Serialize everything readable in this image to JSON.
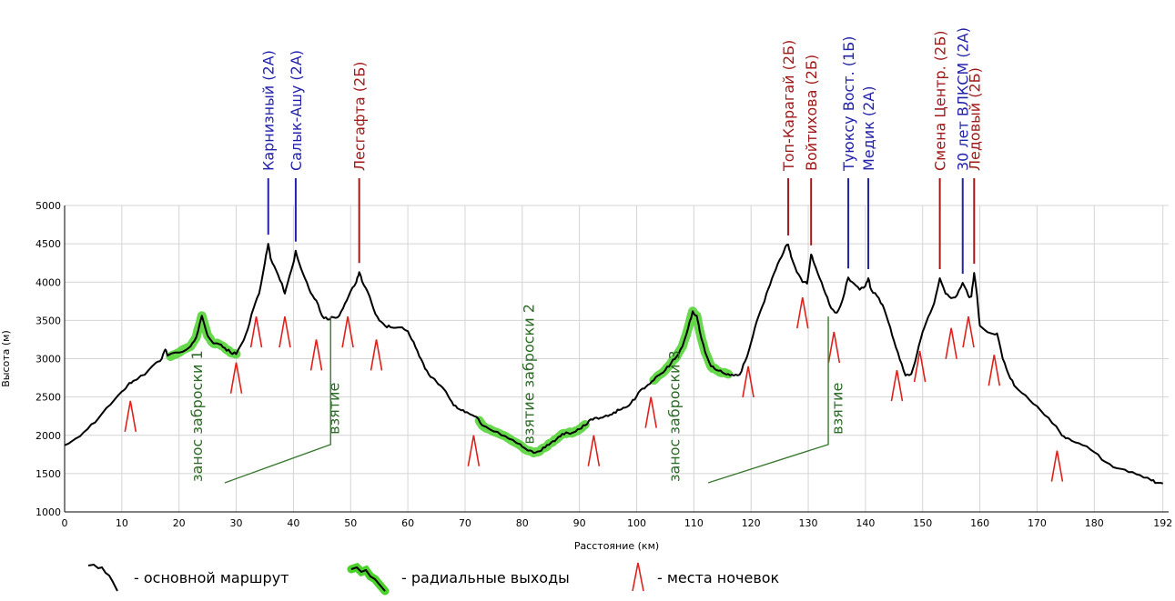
{
  "chart_data": {
    "type": "line",
    "xlabel": "Расстояние  (км)",
    "ylabel": "Высота (м)",
    "xlim": [
      0,
      193
    ],
    "ylim": [
      1000,
      5000
    ],
    "x_ticks": [
      0,
      10,
      20,
      30,
      40,
      50,
      60,
      70,
      80,
      90,
      100,
      110,
      120,
      130,
      140,
      150,
      160,
      170,
      180,
      192
    ],
    "y_ticks": [
      1000,
      1500,
      2000,
      2500,
      3000,
      3500,
      4000,
      4500,
      5000
    ],
    "grid": true,
    "series": [
      {
        "legend": "- основной маршрут",
        "color": "#000000",
        "points": [
          [
            0,
            1870
          ],
          [
            2,
            1960
          ],
          [
            4,
            2080
          ],
          [
            6,
            2230
          ],
          [
            8,
            2400
          ],
          [
            10,
            2570
          ],
          [
            11,
            2650
          ],
          [
            12,
            2710
          ],
          [
            14,
            2790
          ],
          [
            16,
            2950
          ],
          [
            17,
            3000
          ],
          [
            17.6,
            3120
          ],
          [
            18,
            3040
          ],
          [
            20,
            3080
          ],
          [
            22,
            3160
          ],
          [
            23,
            3280
          ],
          [
            24,
            3560
          ],
          [
            25,
            3300
          ],
          [
            26,
            3200
          ],
          [
            27,
            3190
          ],
          [
            28,
            3140
          ],
          [
            29,
            3080
          ],
          [
            30,
            3060
          ],
          [
            31,
            3200
          ],
          [
            32,
            3380
          ],
          [
            33,
            3650
          ],
          [
            34,
            3850
          ],
          [
            35,
            4250
          ],
          [
            35.6,
            4500
          ],
          [
            36,
            4310
          ],
          [
            37,
            4150
          ],
          [
            38,
            3980
          ],
          [
            38.5,
            3850
          ],
          [
            39,
            3990
          ],
          [
            40,
            4250
          ],
          [
            40.4,
            4410
          ],
          [
            41,
            4250
          ],
          [
            42,
            4050
          ],
          [
            43,
            3860
          ],
          [
            44,
            3760
          ],
          [
            45,
            3560
          ],
          [
            46,
            3510
          ],
          [
            47,
            3540
          ],
          [
            48,
            3560
          ],
          [
            49,
            3720
          ],
          [
            50,
            3880
          ],
          [
            51,
            4000
          ],
          [
            51.5,
            4130
          ],
          [
            52,
            4010
          ],
          [
            53,
            3870
          ],
          [
            54,
            3650
          ],
          [
            55,
            3500
          ],
          [
            56,
            3430
          ],
          [
            57,
            3410
          ],
          [
            59,
            3410
          ],
          [
            60,
            3360
          ],
          [
            61,
            3220
          ],
          [
            62,
            3030
          ],
          [
            63,
            2870
          ],
          [
            64,
            2760
          ],
          [
            65,
            2700
          ],
          [
            66,
            2630
          ],
          [
            67,
            2520
          ],
          [
            68,
            2390
          ],
          [
            69,
            2340
          ],
          [
            70,
            2300
          ],
          [
            71,
            2270
          ],
          [
            72,
            2240
          ],
          [
            73,
            2130
          ],
          [
            75,
            2050
          ],
          [
            77,
            1990
          ],
          [
            79,
            1900
          ],
          [
            80,
            1850
          ],
          [
            81,
            1800
          ],
          [
            82,
            1770
          ],
          [
            83,
            1790
          ],
          [
            84,
            1840
          ],
          [
            85,
            1900
          ],
          [
            86,
            1950
          ],
          [
            87,
            2020
          ],
          [
            88,
            2030
          ],
          [
            89,
            2040
          ],
          [
            90,
            2080
          ],
          [
            91,
            2130
          ],
          [
            92,
            2210
          ],
          [
            93,
            2230
          ],
          [
            94,
            2230
          ],
          [
            95,
            2250
          ],
          [
            96,
            2300
          ],
          [
            97,
            2330
          ],
          [
            98,
            2360
          ],
          [
            99,
            2420
          ],
          [
            100,
            2510
          ],
          [
            101,
            2610
          ],
          [
            102,
            2660
          ],
          [
            103,
            2720
          ],
          [
            104,
            2790
          ],
          [
            105,
            2850
          ],
          [
            106,
            2940
          ],
          [
            107,
            3030
          ],
          [
            108,
            3160
          ],
          [
            109,
            3400
          ],
          [
            109.8,
            3620
          ],
          [
            110.5,
            3560
          ],
          [
            111,
            3370
          ],
          [
            112,
            3080
          ],
          [
            113,
            2900
          ],
          [
            114,
            2850
          ],
          [
            115,
            2820
          ],
          [
            116,
            2800
          ],
          [
            117,
            2780
          ],
          [
            118,
            2790
          ],
          [
            119,
            2970
          ],
          [
            120,
            3210
          ],
          [
            121,
            3490
          ],
          [
            122,
            3690
          ],
          [
            123,
            3910
          ],
          [
            124,
            4110
          ],
          [
            125,
            4290
          ],
          [
            126,
            4460
          ],
          [
            126.5,
            4490
          ],
          [
            127,
            4330
          ],
          [
            128,
            4130
          ],
          [
            129,
            4000
          ],
          [
            129.8,
            3980
          ],
          [
            130.5,
            4360
          ],
          [
            131,
            4250
          ],
          [
            132,
            4050
          ],
          [
            133,
            3850
          ],
          [
            134,
            3660
          ],
          [
            135,
            3600
          ],
          [
            136,
            3770
          ],
          [
            137,
            4060
          ],
          [
            138,
            3980
          ],
          [
            139,
            3900
          ],
          [
            140,
            3950
          ],
          [
            140.5,
            4050
          ],
          [
            141,
            3900
          ],
          [
            142,
            3820
          ],
          [
            143,
            3700
          ],
          [
            144,
            3480
          ],
          [
            145,
            3230
          ],
          [
            146,
            2990
          ],
          [
            147,
            2780
          ],
          [
            148,
            2800
          ],
          [
            149,
            3060
          ],
          [
            150,
            3350
          ],
          [
            151,
            3550
          ],
          [
            152,
            3720
          ],
          [
            153,
            4050
          ],
          [
            154,
            3850
          ],
          [
            155,
            3790
          ],
          [
            156,
            3830
          ],
          [
            157,
            3990
          ],
          [
            158,
            3820
          ],
          [
            158.5,
            3810
          ],
          [
            159,
            4120
          ],
          [
            159.5,
            3830
          ],
          [
            160,
            3430
          ],
          [
            162,
            3330
          ],
          [
            163,
            3330
          ],
          [
            164,
            3000
          ],
          [
            165,
            2800
          ],
          [
            166,
            2650
          ],
          [
            168,
            2520
          ],
          [
            170,
            2380
          ],
          [
            172,
            2230
          ],
          [
            174,
            2040
          ],
          [
            175,
            1960
          ],
          [
            176,
            1930
          ],
          [
            178,
            1870
          ],
          [
            180,
            1780
          ],
          [
            182,
            1650
          ],
          [
            184,
            1570
          ],
          [
            186,
            1520
          ],
          [
            188,
            1480
          ],
          [
            190,
            1410
          ],
          [
            191,
            1380
          ],
          [
            192,
            1370
          ]
        ]
      },
      {
        "legend": "- радиальные выходы",
        "color": "#4bd12c",
        "segments": [
          [
            [
              18.5,
              3030
            ],
            [
              20,
              3080
            ],
            [
              22,
              3160
            ],
            [
              23,
              3280
            ],
            [
              24,
              3560
            ],
            [
              25,
              3300
            ],
            [
              26,
              3200
            ],
            [
              27,
              3190
            ],
            [
              28,
              3140
            ],
            [
              29,
              3080
            ],
            [
              30,
              3060
            ]
          ],
          [
            [
              72.5,
              2190
            ],
            [
              73,
              2130
            ],
            [
              75,
              2050
            ],
            [
              77,
              1990
            ],
            [
              79,
              1900
            ],
            [
              80,
              1850
            ],
            [
              81,
              1800
            ],
            [
              82,
              1770
            ],
            [
              83,
              1790
            ],
            [
              84,
              1840
            ],
            [
              85,
              1900
            ],
            [
              86,
              1950
            ],
            [
              87,
              2020
            ],
            [
              88,
              2030
            ],
            [
              89,
              2040
            ],
            [
              90,
              2080
            ],
            [
              91,
              2140
            ]
          ],
          [
            [
              103,
              2720
            ],
            [
              104,
              2790
            ],
            [
              105,
              2850
            ],
            [
              106,
              2940
            ],
            [
              107,
              3030
            ],
            [
              108,
              3160
            ],
            [
              109,
              3400
            ],
            [
              109.8,
              3620
            ],
            [
              110.5,
              3560
            ],
            [
              111,
              3370
            ],
            [
              112,
              3080
            ],
            [
              113,
              2900
            ],
            [
              114,
              2850
            ],
            [
              115,
              2820
            ],
            [
              116,
              2800
            ]
          ]
        ]
      }
    ],
    "overnight_markers": {
      "legend": "- места ночевок",
      "color": "#e0201c",
      "x": [
        11.5,
        30,
        33.5,
        38.5,
        44,
        49.5,
        54.5,
        71.5,
        92.5,
        102.5,
        119.5,
        129,
        134.5,
        145.5,
        149.5,
        155,
        158,
        162.5,
        173.5
      ],
      "y": [
        2450,
        2950,
        3550,
        3550,
        3250,
        3550,
        3250,
        2000,
        2000,
        2500,
        2900,
        3800,
        3350,
        2850,
        3100,
        3400,
        3550,
        3050,
        1800
      ]
    },
    "passes": [
      {
        "x": 35.6,
        "label": "Карнизный (2А)",
        "color": "#2222aa"
      },
      {
        "x": 40.4,
        "label": "Салык-Ашу (2А)",
        "color": "#2222aa"
      },
      {
        "x": 51.5,
        "label": "Лесгафта (2Б)",
        "color": "#a11a1a"
      },
      {
        "x": 126.5,
        "label": "Топ-Карагай (2Б)",
        "color": "#a11a1a"
      },
      {
        "x": 130.5,
        "label": "Войтихова (2Б)",
        "color": "#a11a1a"
      },
      {
        "x": 137,
        "label": "Туюксу Вост. (1Б)",
        "color": "#2222aa"
      },
      {
        "x": 140.5,
        "label": "Медик (2А)",
        "color": "#2222aa"
      },
      {
        "x": 153,
        "label": "Смена Центр. (2Б)",
        "color": "#a11a1a"
      },
      {
        "x": 157,
        "label": "30 лет ВЛКСМ (2А)",
        "color": "#2222aa"
      },
      {
        "x": 159,
        "label": "Ледовый (2Б)",
        "color": "#a11a1a"
      }
    ],
    "annotations": [
      {
        "text": "занос заброски 1",
        "x": 24,
        "y": 2250
      },
      {
        "text": "взятие",
        "x": 48,
        "y": 2350
      },
      {
        "text": "взятие заброски 2",
        "x": 82,
        "y": 2800
      },
      {
        "text": "занос заброски 3",
        "x": 107.5,
        "y": 2250
      },
      {
        "text": "взятие",
        "x": 136,
        "y": 2350
      }
    ]
  }
}
